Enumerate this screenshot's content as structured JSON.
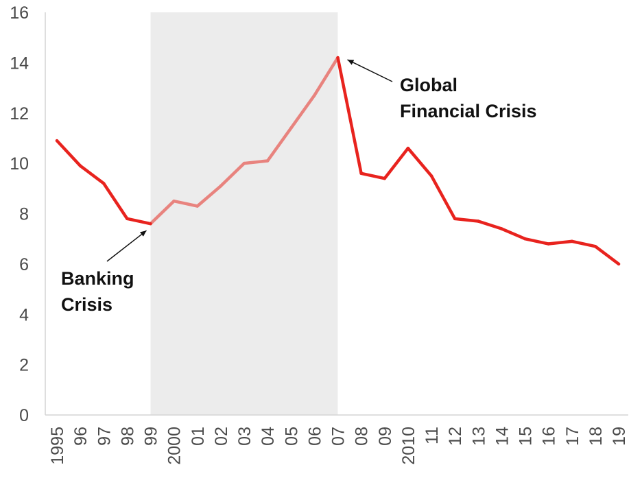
{
  "chart_data": {
    "type": "line",
    "title": "",
    "xlabel": "",
    "ylabel": "",
    "ylim": [
      0,
      16
    ],
    "yticks": [
      "0",
      "2",
      "4",
      "6",
      "8",
      "10",
      "12",
      "14",
      "16"
    ],
    "categories": [
      "1995",
      "96",
      "97",
      "98",
      "99",
      "2000",
      "01",
      "02",
      "03",
      "04",
      "05",
      "06",
      "07",
      "08",
      "09",
      "2010",
      "11",
      "12",
      "13",
      "14",
      "15",
      "16",
      "17",
      "18",
      "19"
    ],
    "series": [
      {
        "color": "#e8231e",
        "values": [
          10.9,
          9.9,
          9.2,
          7.8,
          7.6,
          8.5,
          8.3,
          9.1,
          10.0,
          10.1,
          11.4,
          12.7,
          14.2,
          9.6,
          9.4,
          10.6,
          9.5,
          7.8,
          7.7,
          7.4,
          7.0,
          6.8,
          6.9,
          6.7,
          6.0
        ]
      }
    ],
    "shaded_region": {
      "from": "99",
      "to": "07",
      "color": "#ececec"
    },
    "faded_line_color": "#e8837e",
    "annotations": [
      {
        "text_lines": [
          "Banking",
          "Crisis"
        ],
        "points_to": "99"
      },
      {
        "text_lines": [
          "Global",
          "Financial Crisis"
        ],
        "points_to": "07"
      }
    ],
    "grid": false,
    "legend": "none"
  }
}
